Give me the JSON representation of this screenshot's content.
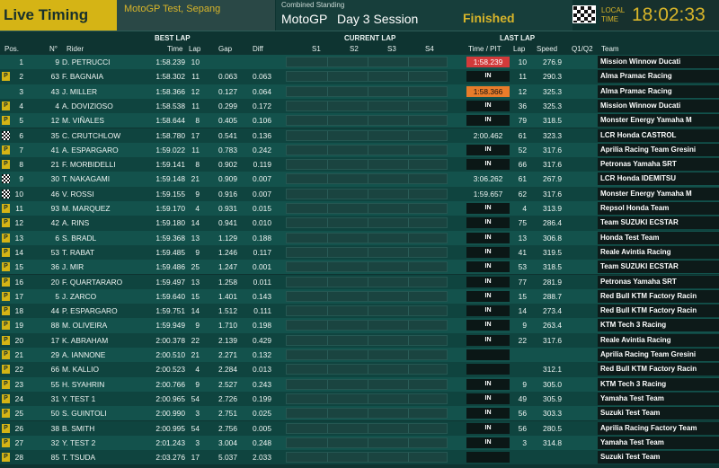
{
  "header": {
    "app_title": "Live Timing",
    "event": "MotoGP Test, Sepang",
    "standing_label": "Combined Standing",
    "series": "MotoGP",
    "session": "Day 3 Session",
    "status": "Finished",
    "local_time_label_1": "LOCAL",
    "local_time_label_2": "TIME",
    "clock": "18:02:33"
  },
  "columns": {
    "best_lap": "BEST LAP",
    "current_lap": "CURRENT LAP",
    "last_lap": "LAST LAP",
    "pos": "Pos.",
    "num": "N°",
    "rider": "Rider",
    "time": "Time",
    "lap": "Lap",
    "gap": "Gap",
    "diff": "Diff",
    "s1": "S1",
    "s2": "S2",
    "s3": "S3",
    "s4": "S4",
    "time_pit": "Time / PIT",
    "last_lap_col": "Lap",
    "speed": "Speed",
    "q": "Q1/Q2",
    "team": "Team"
  },
  "rows": [
    {
      "icon": "",
      "pos": "1",
      "num": "9",
      "rider": "D. PETRUCCI",
      "time": "1:58.239",
      "lap": "10",
      "gap": "",
      "diff": "",
      "last": "1:58.239",
      "last_style": "red",
      "last_lap": "10",
      "speed": "276.9",
      "team": "Mission Winnow Ducati"
    },
    {
      "icon": "P",
      "pos": "2",
      "num": "63",
      "rider": "F. BAGNAIA",
      "time": "1:58.302",
      "lap": "11",
      "gap": "0.063",
      "diff": "0.063",
      "last": "IN",
      "last_style": "in",
      "last_lap": "11",
      "speed": "290.3",
      "team": "Alma Pramac Racing"
    },
    {
      "icon": "",
      "pos": "3",
      "num": "43",
      "rider": "J. MILLER",
      "time": "1:58.366",
      "lap": "12",
      "gap": "0.127",
      "diff": "0.064",
      "last": "1:58.366",
      "last_style": "orange",
      "last_lap": "12",
      "speed": "325.3",
      "team": "Alma Pramac Racing"
    },
    {
      "icon": "P",
      "pos": "4",
      "num": "4",
      "rider": "A. DOVIZIOSO",
      "time": "1:58.538",
      "lap": "11",
      "gap": "0.299",
      "diff": "0.172",
      "last": "IN",
      "last_style": "in",
      "last_lap": "36",
      "speed": "325.3",
      "team": "Mission Winnow Ducati"
    },
    {
      "icon": "P",
      "pos": "5",
      "num": "12",
      "rider": "M. VIÑALES",
      "time": "1:58.644",
      "lap": "8",
      "gap": "0.405",
      "diff": "0.106",
      "last": "IN",
      "last_style": "in",
      "last_lap": "79",
      "speed": "318.5",
      "team": "Monster Energy Yamaha M"
    },
    {
      "icon": "chk",
      "pos": "6",
      "num": "35",
      "rider": "C. CRUTCHLOW",
      "time": "1:58.780",
      "lap": "17",
      "gap": "0.541",
      "diff": "0.136",
      "last": "2:00.462",
      "last_style": "plain",
      "last_lap": "61",
      "speed": "323.3",
      "team": "LCR Honda CASTROL"
    },
    {
      "icon": "P",
      "pos": "7",
      "num": "41",
      "rider": "A. ESPARGARO",
      "time": "1:59.022",
      "lap": "11",
      "gap": "0.783",
      "diff": "0.242",
      "last": "IN",
      "last_style": "in",
      "last_lap": "52",
      "speed": "317.6",
      "team": "Aprilia Racing Team Gresini"
    },
    {
      "icon": "P",
      "pos": "8",
      "num": "21",
      "rider": "F. MORBIDELLI",
      "time": "1:59.141",
      "lap": "8",
      "gap": "0.902",
      "diff": "0.119",
      "last": "IN",
      "last_style": "in",
      "last_lap": "66",
      "speed": "317.6",
      "team": "Petronas Yamaha SRT"
    },
    {
      "icon": "chk",
      "pos": "9",
      "num": "30",
      "rider": "T. NAKAGAMI",
      "time": "1:59.148",
      "lap": "21",
      "gap": "0.909",
      "diff": "0.007",
      "last": "3:06.262",
      "last_style": "plain",
      "last_lap": "61",
      "speed": "267.9",
      "team": "LCR Honda IDEMITSU"
    },
    {
      "icon": "chk",
      "pos": "10",
      "num": "46",
      "rider": "V. ROSSI",
      "time": "1:59.155",
      "lap": "9",
      "gap": "0.916",
      "diff": "0.007",
      "last": "1:59.657",
      "last_style": "plain",
      "last_lap": "62",
      "speed": "317.6",
      "team": "Monster Energy Yamaha M"
    },
    {
      "icon": "P",
      "pos": "11",
      "num": "93",
      "rider": "M. MARQUEZ",
      "time": "1:59.170",
      "lap": "4",
      "gap": "0.931",
      "diff": "0.015",
      "last": "IN",
      "last_style": "in",
      "last_lap": "4",
      "speed": "313.9",
      "team": "Repsol Honda Team"
    },
    {
      "icon": "P",
      "pos": "12",
      "num": "42",
      "rider": "A. RINS",
      "time": "1:59.180",
      "lap": "14",
      "gap": "0.941",
      "diff": "0.010",
      "last": "IN",
      "last_style": "in",
      "last_lap": "75",
      "speed": "286.4",
      "team": "Team SUZUKI ECSTAR"
    },
    {
      "icon": "P",
      "pos": "13",
      "num": "6",
      "rider": "S. BRADL",
      "time": "1:59.368",
      "lap": "13",
      "gap": "1.129",
      "diff": "0.188",
      "last": "IN",
      "last_style": "in",
      "last_lap": "13",
      "speed": "306.8",
      "team": "Honda Test Team"
    },
    {
      "icon": "P",
      "pos": "14",
      "num": "53",
      "rider": "T. RABAT",
      "time": "1:59.485",
      "lap": "9",
      "gap": "1.246",
      "diff": "0.117",
      "last": "IN",
      "last_style": "in",
      "last_lap": "41",
      "speed": "319.5",
      "team": "Reale Avintia Racing"
    },
    {
      "icon": "P",
      "pos": "15",
      "num": "36",
      "rider": "J. MIR",
      "time": "1:59.486",
      "lap": "25",
      "gap": "1.247",
      "diff": "0.001",
      "last": "IN",
      "last_style": "in",
      "last_lap": "53",
      "speed": "318.5",
      "team": "Team SUZUKI ECSTAR"
    },
    {
      "icon": "P",
      "pos": "16",
      "num": "20",
      "rider": "F. QUARTARARO",
      "time": "1:59.497",
      "lap": "13",
      "gap": "1.258",
      "diff": "0.011",
      "last": "IN",
      "last_style": "in",
      "last_lap": "77",
      "speed": "281.9",
      "team": "Petronas Yamaha SRT"
    },
    {
      "icon": "P",
      "pos": "17",
      "num": "5",
      "rider": "J. ZARCO",
      "time": "1:59.640",
      "lap": "15",
      "gap": "1.401",
      "diff": "0.143",
      "last": "IN",
      "last_style": "in",
      "last_lap": "15",
      "speed": "288.7",
      "team": "Red Bull KTM Factory Racin"
    },
    {
      "icon": "P",
      "pos": "18",
      "num": "44",
      "rider": "P. ESPARGARO",
      "time": "1:59.751",
      "lap": "14",
      "gap": "1.512",
      "diff": "0.111",
      "last": "IN",
      "last_style": "in",
      "last_lap": "14",
      "speed": "273.4",
      "team": "Red Bull KTM Factory Racin"
    },
    {
      "icon": "P",
      "pos": "19",
      "num": "88",
      "rider": "M. OLIVEIRA",
      "time": "1:59.949",
      "lap": "9",
      "gap": "1.710",
      "diff": "0.198",
      "last": "IN",
      "last_style": "in",
      "last_lap": "9",
      "speed": "263.4",
      "team": "KTM Tech 3 Racing"
    },
    {
      "icon": "P",
      "pos": "20",
      "num": "17",
      "rider": "K. ABRAHAM",
      "time": "2:00.378",
      "lap": "22",
      "gap": "2.139",
      "diff": "0.429",
      "last": "IN",
      "last_style": "in",
      "last_lap": "22",
      "speed": "317.6",
      "team": "Reale Avintia Racing"
    },
    {
      "icon": "P",
      "pos": "21",
      "num": "29",
      "rider": "A. IANNONE",
      "time": "2:00.510",
      "lap": "21",
      "gap": "2.271",
      "diff": "0.132",
      "last": "",
      "last_style": "blank",
      "last_lap": "",
      "speed": "",
      "team": "Aprilia Racing Team Gresini"
    },
    {
      "icon": "P",
      "pos": "22",
      "num": "66",
      "rider": "M. KALLIO",
      "time": "2:00.523",
      "lap": "4",
      "gap": "2.284",
      "diff": "0.013",
      "last": "",
      "last_style": "blank",
      "last_lap": "",
      "speed": "312.1",
      "team": "Red Bull KTM Factory Racin"
    },
    {
      "icon": "P",
      "pos": "23",
      "num": "55",
      "rider": "H. SYAHRIN",
      "time": "2:00.766",
      "lap": "9",
      "gap": "2.527",
      "diff": "0.243",
      "last": "IN",
      "last_style": "in",
      "last_lap": "9",
      "speed": "305.0",
      "team": "KTM Tech 3 Racing"
    },
    {
      "icon": "P",
      "pos": "24",
      "num": "31",
      "rider": "Y. TEST 1",
      "time": "2:00.965",
      "lap": "54",
      "gap": "2.726",
      "diff": "0.199",
      "last": "IN",
      "last_style": "in",
      "last_lap": "49",
      "speed": "305.9",
      "team": "Yamaha Test Team"
    },
    {
      "icon": "P",
      "pos": "25",
      "num": "50",
      "rider": "S. GUINTOLI",
      "time": "2:00.990",
      "lap": "3",
      "gap": "2.751",
      "diff": "0.025",
      "last": "IN",
      "last_style": "in",
      "last_lap": "56",
      "speed": "303.3",
      "team": "Suzuki Test Team"
    },
    {
      "icon": "P",
      "pos": "26",
      "num": "38",
      "rider": "B. SMITH",
      "time": "2:00.995",
      "lap": "54",
      "gap": "2.756",
      "diff": "0.005",
      "last": "IN",
      "last_style": "in",
      "last_lap": "56",
      "speed": "280.5",
      "team": "Aprilia Racing Factory Team"
    },
    {
      "icon": "P",
      "pos": "27",
      "num": "32",
      "rider": "Y. TEST 2",
      "time": "2:01.243",
      "lap": "3",
      "gap": "3.004",
      "diff": "0.248",
      "last": "IN",
      "last_style": "in",
      "last_lap": "3",
      "speed": "314.8",
      "team": "Yamaha Test Team"
    },
    {
      "icon": "P",
      "pos": "28",
      "num": "85",
      "rider": "T. TSUDA",
      "time": "2:03.276",
      "lap": "17",
      "gap": "5.037",
      "diff": "2.033",
      "last": "",
      "last_style": "blank",
      "last_lap": "",
      "speed": "",
      "team": "Suzuki Test Team"
    }
  ]
}
